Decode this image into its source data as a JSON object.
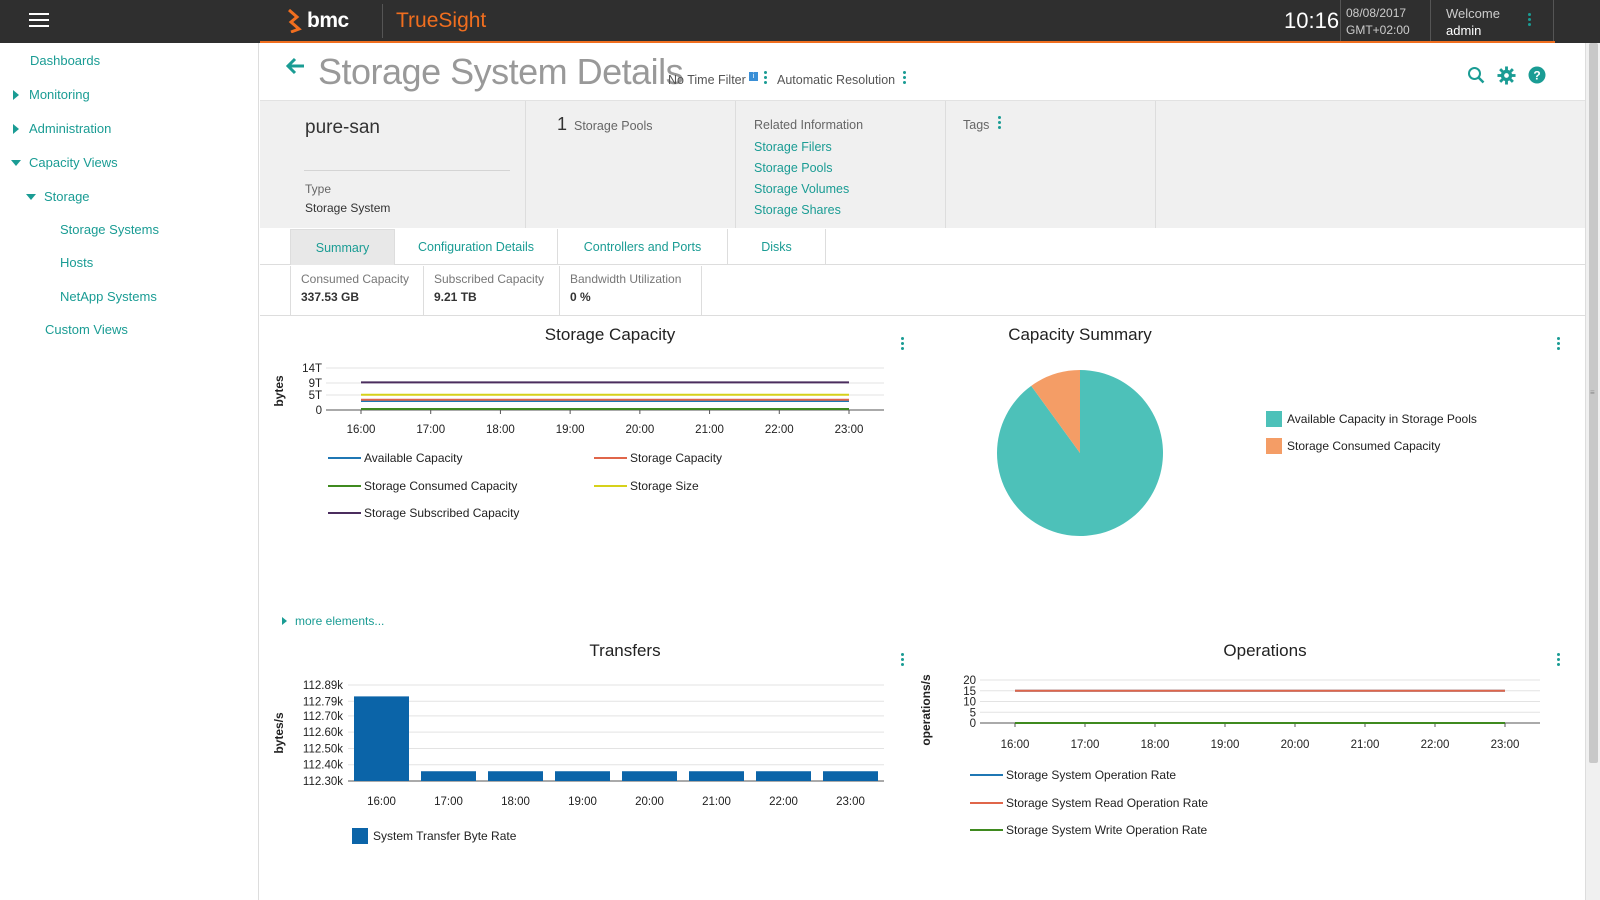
{
  "topbar": {
    "brand": "bmc",
    "product": "TrueSight",
    "time": "10:16",
    "date": "08/08/2017",
    "timezone": "GMT+02:00",
    "welcome": "Welcome",
    "user": "admin",
    "accent_color": "#f06e1f"
  },
  "sidebar": {
    "items": [
      {
        "label": "Dashboards"
      },
      {
        "label": "Monitoring"
      },
      {
        "label": "Administration"
      },
      {
        "label": "Capacity Views"
      },
      {
        "label": "Storage"
      },
      {
        "label": "Storage Systems"
      },
      {
        "label": "Hosts"
      },
      {
        "label": "NetApp Systems"
      },
      {
        "label": "Custom Views"
      }
    ]
  },
  "header": {
    "title": "Storage System Details",
    "time_filter": "No Time Filter",
    "resolution": "Automatic Resolution"
  },
  "info": {
    "system_name": "pure-san",
    "type_label": "Type",
    "type_value": "Storage System",
    "pool_count": "1",
    "pool_label": "Storage Pools",
    "related_title": "Related Information",
    "related_links": [
      "Storage Filers",
      "Storage Pools",
      "Storage Volumes",
      "Storage Shares"
    ],
    "tags_label": "Tags"
  },
  "tabs": [
    {
      "label": "Summary",
      "active": true
    },
    {
      "label": "Configuration Details"
    },
    {
      "label": "Controllers and Ports"
    },
    {
      "label": "Disks"
    }
  ],
  "metrics": [
    {
      "label": "Consumed Capacity",
      "value": "337.53 GB"
    },
    {
      "label": "Subscribed Capacity",
      "value": "9.21 TB"
    },
    {
      "label": "Bandwidth Utilization",
      "value": "0 %"
    }
  ],
  "more_elements": "more elements...",
  "chart_data": [
    {
      "type": "line",
      "title": "Storage Capacity",
      "ylabel": "bytes",
      "x": [
        "16:00",
        "17:00",
        "18:00",
        "19:00",
        "20:00",
        "21:00",
        "22:00",
        "23:00"
      ],
      "yticks": [
        "0",
        "5T",
        "9T",
        "14T"
      ],
      "ylim": [
        0,
        14
      ],
      "series": [
        {
          "name": "Available Capacity",
          "color": "#1f77b4",
          "values": [
            3.0,
            3.0,
            3.0,
            3.0,
            3.0,
            3.0,
            3.0,
            3.0
          ]
        },
        {
          "name": "Storage Capacity",
          "color": "#e0664a",
          "values": [
            3.4,
            3.4,
            3.4,
            3.4,
            3.4,
            3.4,
            3.4,
            3.4
          ]
        },
        {
          "name": "Storage Consumed Capacity",
          "color": "#3f8a1f",
          "values": [
            0.34,
            0.34,
            0.34,
            0.34,
            0.34,
            0.34,
            0.34,
            0.34
          ]
        },
        {
          "name": "Storage Size",
          "color": "#d6d11a",
          "values": [
            5.1,
            5.1,
            5.1,
            5.1,
            5.1,
            5.1,
            5.1,
            5.1
          ]
        },
        {
          "name": "Storage Subscribed Capacity",
          "color": "#4b2d5e",
          "values": [
            9.21,
            9.21,
            9.21,
            9.21,
            9.21,
            9.21,
            9.21,
            9.21
          ]
        }
      ],
      "legend": "bottom"
    },
    {
      "type": "pie",
      "title": "Capacity Summary",
      "slices": [
        {
          "name": "Available Capacity in Storage Pools",
          "color": "#4dc1b9",
          "value": 90
        },
        {
          "name": "Storage Consumed Capacity",
          "color": "#f49d66",
          "value": 10
        }
      ],
      "legend": "right"
    },
    {
      "type": "bar",
      "title": "Transfers",
      "ylabel": "bytes/s",
      "categories": [
        "16:00",
        "17:00",
        "18:00",
        "19:00",
        "20:00",
        "21:00",
        "22:00",
        "23:00"
      ],
      "yticks": [
        "112.30k",
        "112.40k",
        "112.50k",
        "112.60k",
        "112.70k",
        "112.79k",
        "112.89k"
      ],
      "ylim": [
        112.3,
        112.89
      ],
      "series": [
        {
          "name": "System Transfer Byte Rate",
          "color": "#0b64a8",
          "values": [
            112.82,
            112.36,
            112.36,
            112.36,
            112.36,
            112.36,
            112.36,
            112.36
          ]
        }
      ],
      "legend": "bottom"
    },
    {
      "type": "line",
      "title": "Operations",
      "ylabel": "operations/s",
      "x": [
        "16:00",
        "17:00",
        "18:00",
        "19:00",
        "20:00",
        "21:00",
        "22:00",
        "23:00"
      ],
      "yticks": [
        "0",
        "5",
        "10",
        "15",
        "20"
      ],
      "ylim": [
        0,
        20
      ],
      "series": [
        {
          "name": "Storage System Operation Rate",
          "color": "#1f77b4",
          "values": [
            15,
            15,
            15,
            15,
            15,
            15,
            15,
            15
          ]
        },
        {
          "name": "Storage System Read Operation Rate",
          "color": "#e0664a",
          "values": [
            15,
            15,
            15,
            15,
            15,
            15,
            15,
            15
          ]
        },
        {
          "name": "Storage System Write Operation Rate",
          "color": "#3f8a1f",
          "values": [
            0,
            0,
            0,
            0,
            0,
            0,
            0,
            0
          ]
        }
      ],
      "legend": "bottom"
    }
  ]
}
